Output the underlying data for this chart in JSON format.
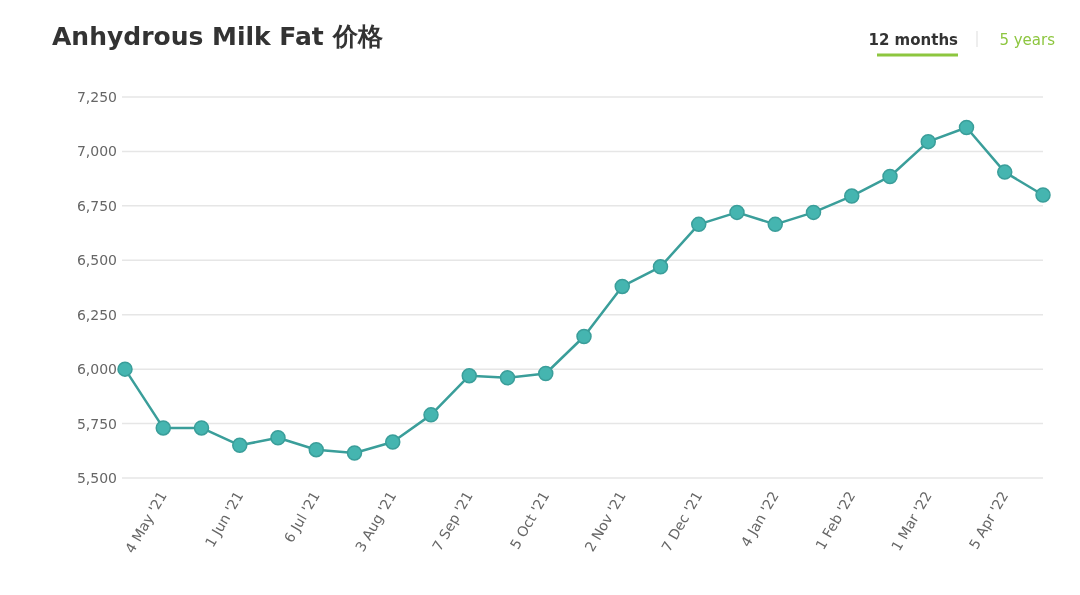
{
  "chart_data": {
    "type": "line",
    "title": "Anhydrous Milk Fat 价格",
    "categories": [
      null,
      "4 May '21",
      null,
      "1 Jun '21",
      null,
      "6 Jul '21",
      null,
      "3 Aug '21",
      null,
      "7 Sep '21",
      null,
      "5 Oct '21",
      null,
      "2 Nov '21",
      null,
      "7 Dec '21",
      null,
      "4 Jan '22",
      null,
      "1 Feb '22",
      null,
      "1 Mar '22",
      null,
      "5 Apr '22",
      null
    ],
    "values": [
      6000,
      5730,
      5730,
      5650,
      5685,
      5630,
      5615,
      5665,
      5790,
      5970,
      5960,
      5980,
      6150,
      6380,
      6470,
      6665,
      6720,
      6665,
      6720,
      6795,
      6885,
      7045,
      7110,
      6905,
      6800
    ],
    "color": "#45b5b0",
    "ylim": [
      5500,
      7250
    ],
    "yticks": [
      {
        "value": 5500,
        "label": "5,500"
      },
      {
        "value": 5750,
        "label": "5,750"
      },
      {
        "value": 6000,
        "label": "6,000"
      },
      {
        "value": 6250,
        "label": "6,250"
      },
      {
        "value": 6500,
        "label": "6,500"
      },
      {
        "value": 6750,
        "label": "6,750"
      },
      {
        "value": 7000,
        "label": "7,000"
      },
      {
        "value": 7250,
        "label": "7,250"
      }
    ],
    "grid": "y",
    "marker": "circle",
    "line_style": "solid",
    "annotations": [
      "12 months",
      "5 years"
    ]
  }
}
